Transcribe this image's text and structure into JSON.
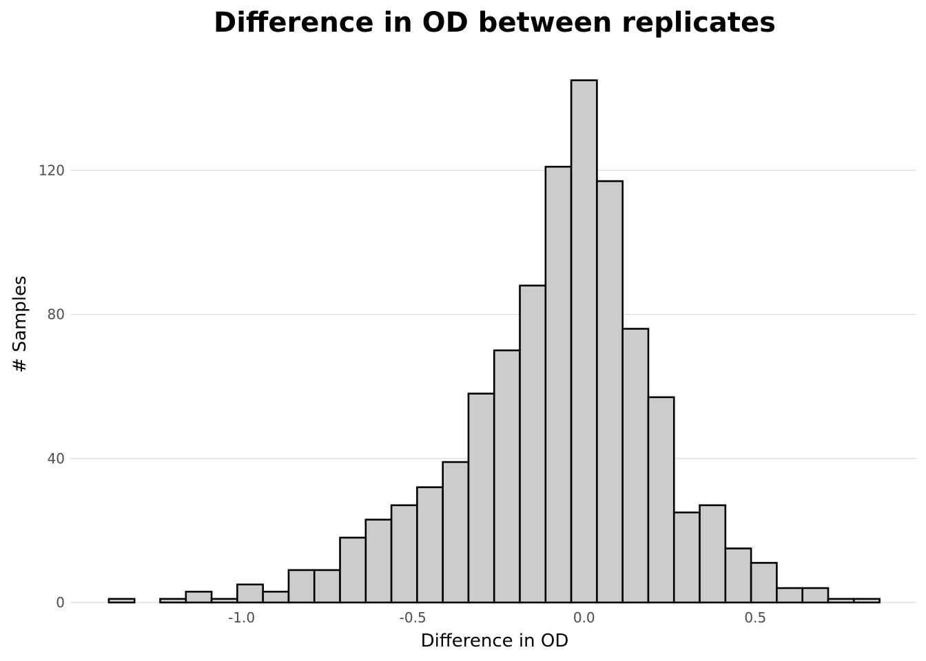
{
  "chart_data": {
    "type": "bar",
    "title": "Difference in OD between replicates",
    "xlabel": "Difference in OD",
    "ylabel": "# Samples",
    "bin_width": 0.075,
    "bins": [
      {
        "x_start": -1.3875,
        "x_end": -1.3125,
        "count": 1
      },
      {
        "x_start": -1.3125,
        "x_end": -1.2375,
        "count": 0
      },
      {
        "x_start": -1.2375,
        "x_end": -1.1625,
        "count": 1
      },
      {
        "x_start": -1.1625,
        "x_end": -1.0875,
        "count": 3
      },
      {
        "x_start": -1.0875,
        "x_end": -1.0125,
        "count": 1
      },
      {
        "x_start": -1.0125,
        "x_end": -0.9375,
        "count": 5
      },
      {
        "x_start": -0.9375,
        "x_end": -0.8625,
        "count": 3
      },
      {
        "x_start": -0.8625,
        "x_end": -0.7875,
        "count": 9
      },
      {
        "x_start": -0.7875,
        "x_end": -0.7125,
        "count": 9
      },
      {
        "x_start": -0.7125,
        "x_end": -0.6375,
        "count": 18
      },
      {
        "x_start": -0.6375,
        "x_end": -0.5625,
        "count": 23
      },
      {
        "x_start": -0.5625,
        "x_end": -0.4875,
        "count": 27
      },
      {
        "x_start": -0.4875,
        "x_end": -0.4125,
        "count": 32
      },
      {
        "x_start": -0.4125,
        "x_end": -0.3375,
        "count": 39
      },
      {
        "x_start": -0.3375,
        "x_end": -0.2625,
        "count": 58
      },
      {
        "x_start": -0.2625,
        "x_end": -0.1875,
        "count": 70
      },
      {
        "x_start": -0.1875,
        "x_end": -0.1125,
        "count": 88
      },
      {
        "x_start": -0.1125,
        "x_end": -0.0375,
        "count": 121
      },
      {
        "x_start": -0.0375,
        "x_end": 0.0375,
        "count": 145
      },
      {
        "x_start": 0.0375,
        "x_end": 0.1125,
        "count": 117
      },
      {
        "x_start": 0.1125,
        "x_end": 0.1875,
        "count": 76
      },
      {
        "x_start": 0.1875,
        "x_end": 0.2625,
        "count": 57
      },
      {
        "x_start": 0.2625,
        "x_end": 0.3375,
        "count": 25
      },
      {
        "x_start": 0.3375,
        "x_end": 0.4125,
        "count": 27
      },
      {
        "x_start": 0.4125,
        "x_end": 0.4875,
        "count": 15
      },
      {
        "x_start": 0.4875,
        "x_end": 0.5625,
        "count": 11
      },
      {
        "x_start": 0.5625,
        "x_end": 0.6375,
        "count": 4
      },
      {
        "x_start": 0.6375,
        "x_end": 0.7125,
        "count": 4
      },
      {
        "x_start": 0.7125,
        "x_end": 0.7875,
        "count": 1
      },
      {
        "x_start": 0.7875,
        "x_end": 0.8625,
        "count": 1
      }
    ],
    "xlim": [
      -1.5,
      0.97
    ],
    "ylim": [
      0,
      152
    ],
    "x_ticks": [
      {
        "value": -1.0,
        "label": "-1.0"
      },
      {
        "value": -0.5,
        "label": "-0.5"
      },
      {
        "value": 0.0,
        "label": "0.0"
      },
      {
        "value": 0.5,
        "label": "0.5"
      }
    ],
    "y_ticks": [
      {
        "value": 0,
        "label": "0"
      },
      {
        "value": 40,
        "label": "40"
      },
      {
        "value": 80,
        "label": "80"
      },
      {
        "value": 120,
        "label": "120"
      }
    ],
    "horizontal_grid": true,
    "vertical_grid": false,
    "legend": "none",
    "colors": {
      "bar_fill": "#cccccc",
      "bar_outline": "#000000",
      "grid": "#dedede",
      "tick_text": "#4d4d4d",
      "background": "#ffffff"
    }
  }
}
